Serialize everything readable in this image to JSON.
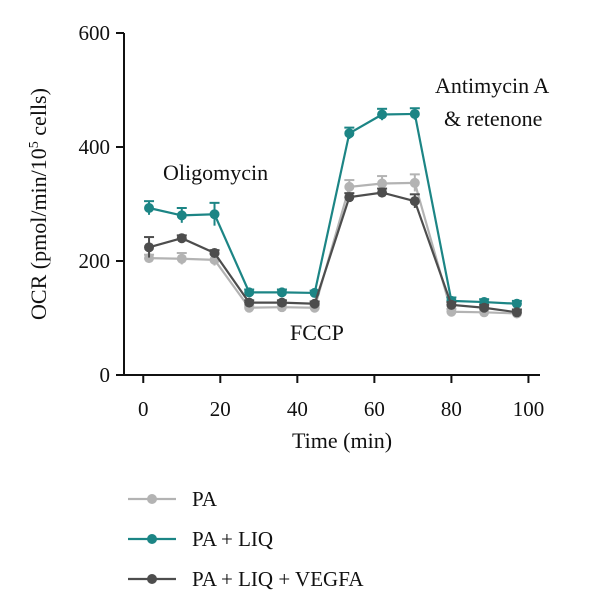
{
  "chart_data": {
    "type": "line",
    "title": "",
    "xlabel": "Time (min)",
    "ylabel": {
      "main": "OCR (pmol/min/10",
      "sup": "5",
      "tail": " cells)"
    },
    "xlim": [
      -5,
      103
    ],
    "ylim": [
      0,
      600
    ],
    "x_ticks": [
      0,
      20,
      40,
      60,
      80,
      100
    ],
    "y_ticks": [
      0,
      200,
      400,
      600
    ],
    "grid": false,
    "legend_position": "bottom-left",
    "x": [
      1.5,
      10,
      18.5,
      27.5,
      36,
      44.5,
      53.5,
      62,
      70.5,
      80,
      88.5,
      97
    ],
    "series": [
      {
        "name": "PA",
        "color": "#b3b3b3",
        "values": [
          205,
          204,
          202,
          118,
          119,
          118,
          330,
          336,
          337,
          111,
          110,
          108
        ],
        "errors": [
          6,
          10,
          10,
          4,
          4,
          4,
          12,
          13,
          15,
          5,
          5,
          5
        ]
      },
      {
        "name": "PA + LIQ",
        "color": "#1c8585",
        "values": [
          293,
          280,
          282,
          145,
          145,
          144,
          424,
          457,
          458,
          130,
          128,
          125
        ],
        "errors": [
          12,
          13,
          20,
          5,
          5,
          4,
          10,
          10,
          10,
          6,
          5,
          5
        ]
      },
      {
        "name": "PA + LIQ + VEGFA",
        "color": "#4d4d4d",
        "values": [
          224,
          240,
          214,
          127,
          127,
          125,
          312,
          320,
          305,
          123,
          118,
          110
        ],
        "errors": [
          18,
          5,
          5,
          4,
          4,
          4,
          7,
          7,
          12,
          5,
          5,
          5
        ]
      }
    ],
    "annotations": [
      {
        "text": "Oligomycin"
      },
      {
        "text": "FCCP"
      },
      {
        "text": "Antimycin A"
      },
      {
        "text": "& retenone"
      }
    ]
  }
}
